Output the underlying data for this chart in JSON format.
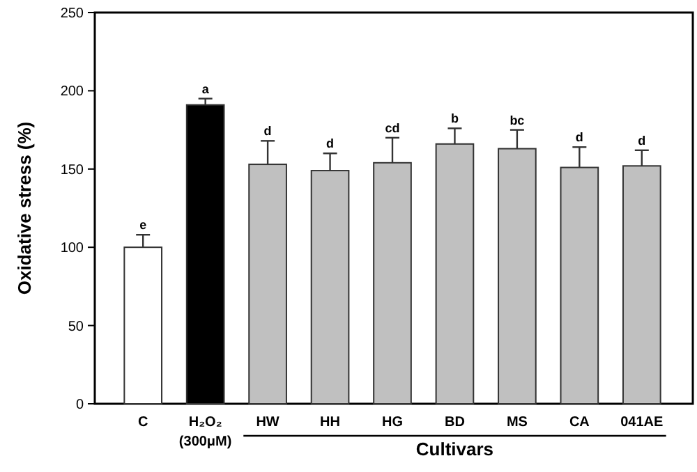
{
  "chart_data": {
    "type": "bar",
    "ylabel": "Oxidative stress (%)",
    "categories": [
      "C",
      "H₂O₂ (300μM)",
      "HW",
      "HH",
      "HG",
      "BD",
      "MS",
      "CA",
      "041AE"
    ],
    "values": [
      100,
      191,
      153,
      149,
      154,
      166,
      163,
      151,
      152
    ],
    "errors": [
      8,
      4,
      15,
      11,
      16,
      10,
      12,
      13,
      10
    ],
    "colors": [
      "#ffffff",
      "#000000",
      "#c0c0c0",
      "#c0c0c0",
      "#c0c0c0",
      "#c0c0c0",
      "#c0c0c0",
      "#c0c0c0",
      "#c0c0c0"
    ],
    "ylim": [
      0,
      250
    ],
    "yticks": [
      0,
      50,
      100,
      150,
      200,
      250
    ],
    "annotations": [
      {
        "text": "e",
        "x": "C",
        "y": 108
      },
      {
        "text": "a",
        "x": "H₂O₂ (300μM)",
        "y": 195
      },
      {
        "text": "d",
        "x": "HW",
        "y": 168
      },
      {
        "text": "d",
        "x": "HH",
        "y": 160
      },
      {
        "text": "cd",
        "x": "HG",
        "y": 170
      },
      {
        "text": "b",
        "x": "BD",
        "y": 176
      },
      {
        "text": "bc",
        "x": "MS",
        "y": 175
      },
      {
        "text": "d",
        "x": "CA",
        "y": 164
      },
      {
        "text": "d",
        "x": "041AE",
        "y": 162
      },
      "Cultivars"
    ]
  }
}
